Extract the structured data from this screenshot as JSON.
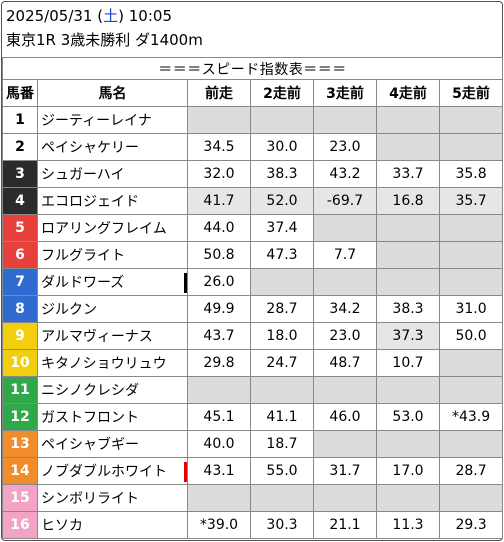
{
  "header": {
    "date": "2025/05/31",
    "weekday_open": "(",
    "weekday": "土",
    "weekday_close": ")",
    "time": "10:05",
    "race": "東京1R 3歳未勝利 ダ1400m"
  },
  "table_title": "＝＝＝スピード指数表＝＝＝",
  "columns": [
    "馬番",
    "馬名",
    "前走",
    "2走前",
    "3走前",
    "4走前",
    "5走前"
  ],
  "colors": {
    "white": "#ffffff",
    "black": "#2b2b2b",
    "red": "#e8413c",
    "blue": "#2f6bd1",
    "yellow": "#f1cf0f",
    "green": "#30a84a",
    "orange": "#f08c2a",
    "pink": "#f3a3c6",
    "left_mark_black": "#000000",
    "left_mark_red": "#e00000"
  },
  "rows": [
    {
      "num": "1",
      "frame": "white",
      "name": "ジーティーレイナ",
      "mark": "",
      "vals": [
        "",
        "",
        "",
        "",
        ""
      ]
    },
    {
      "num": "2",
      "frame": "white",
      "name": "ペイシャケリー",
      "mark": "",
      "vals": [
        "34.5",
        "30.0",
        "23.0",
        "",
        ""
      ]
    },
    {
      "num": "3",
      "frame": "black",
      "name": "シュガーハイ",
      "mark": "",
      "vals": [
        "32.0",
        "38.3",
        "43.2",
        "33.7",
        "35.8"
      ]
    },
    {
      "num": "4",
      "frame": "black",
      "name": "エコロジェイド",
      "mark": "",
      "vals": [
        "41.7",
        "52.0",
        "-69.7",
        "16.8",
        "35.7"
      ]
    },
    {
      "num": "5",
      "frame": "red",
      "name": "ロアリングフレイム",
      "mark": "",
      "vals": [
        "44.0",
        "37.4",
        "",
        "",
        ""
      ]
    },
    {
      "num": "6",
      "frame": "red",
      "name": "フルグライト",
      "mark": "",
      "vals": [
        "50.8",
        "47.3",
        "7.7",
        "",
        ""
      ]
    },
    {
      "num": "7",
      "frame": "blue",
      "name": "ダルドワーズ",
      "mark": "black",
      "vals": [
        "26.0",
        "",
        "",
        "",
        ""
      ]
    },
    {
      "num": "8",
      "frame": "blue",
      "name": "ジルクン",
      "mark": "",
      "vals": [
        "49.9",
        "28.7",
        "34.2",
        "38.3",
        "31.0"
      ]
    },
    {
      "num": "9",
      "frame": "yellow",
      "name": "アルマヴィーナス",
      "mark": "",
      "vals": [
        "43.7",
        "18.0",
        "23.0",
        "37.3",
        "50.0"
      ]
    },
    {
      "num": "10",
      "frame": "yellow",
      "name": "キタノショウリュウ",
      "mark": "",
      "vals": [
        "29.8",
        "24.7",
        "48.7",
        "10.7",
        ""
      ]
    },
    {
      "num": "11",
      "frame": "green",
      "name": "ニシノクレシダ",
      "mark": "",
      "vals": [
        "",
        "",
        "",
        "",
        ""
      ]
    },
    {
      "num": "12",
      "frame": "green",
      "name": "ガストフロント",
      "mark": "",
      "vals": [
        "45.1",
        "41.1",
        "46.0",
        "53.0",
        "*43.9"
      ]
    },
    {
      "num": "13",
      "frame": "orange",
      "name": "ペイシャブギー",
      "mark": "",
      "vals": [
        "40.0",
        "18.7",
        "",
        "",
        ""
      ]
    },
    {
      "num": "14",
      "frame": "orange",
      "name": "ノブダブルホワイト",
      "mark": "red",
      "vals": [
        "43.1",
        "55.0",
        "31.7",
        "17.0",
        "28.7"
      ]
    },
    {
      "num": "15",
      "frame": "pink",
      "name": "シンボリライト",
      "mark": "",
      "vals": [
        "",
        "",
        "",
        "",
        ""
      ]
    },
    {
      "num": "16",
      "frame": "pink",
      "name": "ヒソカ",
      "mark": "",
      "vals": [
        "*39.0",
        "30.3",
        "21.1",
        "11.3",
        "29.3"
      ]
    }
  ]
}
